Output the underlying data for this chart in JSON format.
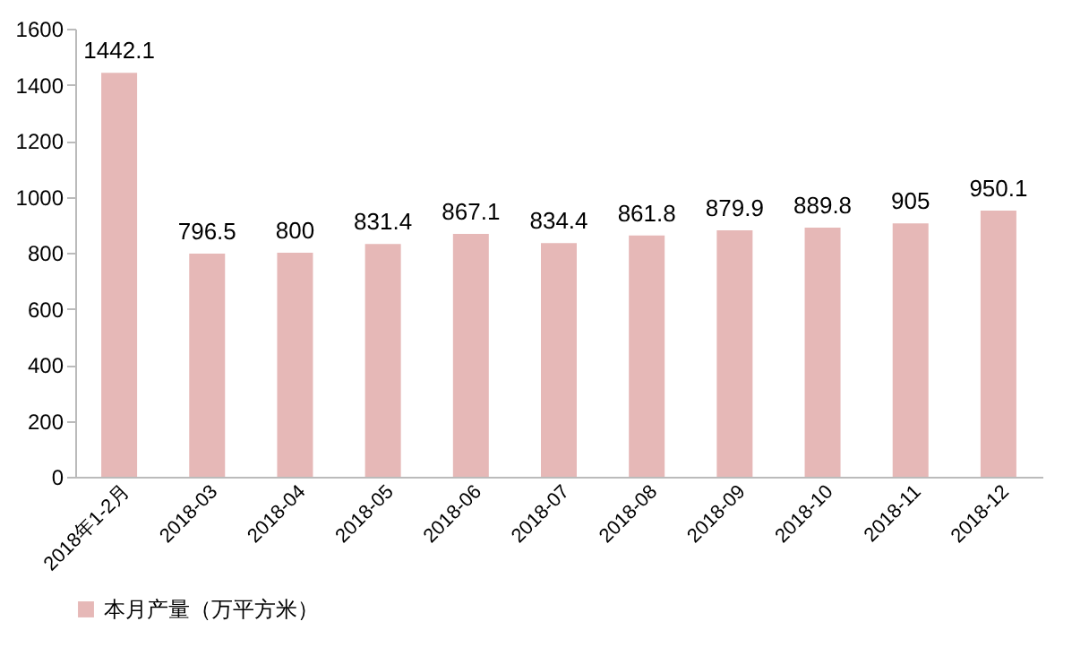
{
  "chart_data": {
    "type": "bar",
    "categories": [
      "2018年1-2月",
      "2018-03",
      "2018-04",
      "2018-05",
      "2018-06",
      "2018-07",
      "2018-08",
      "2018-09",
      "2018-10",
      "2018-11",
      "2018-12"
    ],
    "series": [
      {
        "name": "本月产量（万平方米）",
        "color": "#e6b8b7",
        "values": [
          1442.1,
          796.5,
          800,
          831.4,
          867.1,
          834.4,
          861.8,
          879.9,
          889.8,
          905,
          950.1
        ]
      }
    ],
    "ylim": [
      0,
      1600
    ],
    "yticks": [
      0,
      200,
      400,
      600,
      800,
      1000,
      1200,
      1400,
      1600
    ],
    "data_labels": true,
    "legend": "bottom left",
    "grid": false
  }
}
